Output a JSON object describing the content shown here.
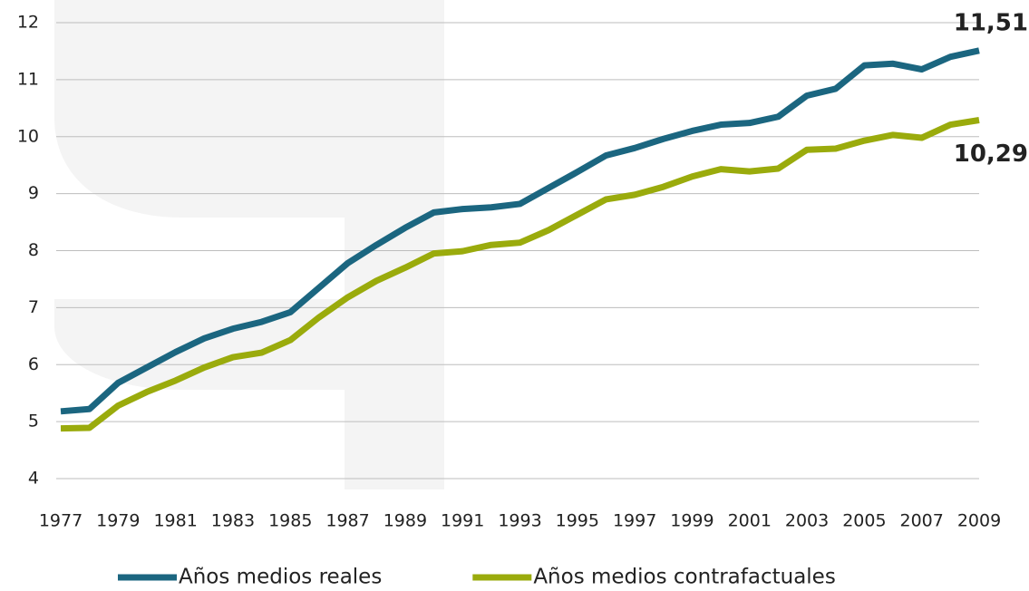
{
  "chart_data": {
    "type": "line",
    "x": [
      1977,
      1978,
      1979,
      1980,
      1981,
      1982,
      1983,
      1984,
      1985,
      1986,
      1987,
      1988,
      1989,
      1990,
      1991,
      1992,
      1993,
      1994,
      1995,
      1996,
      1997,
      1998,
      1999,
      2000,
      2001,
      2002,
      2003,
      2004,
      2005,
      2006,
      2007,
      2008,
      2009
    ],
    "xlim": [
      1977,
      2009
    ],
    "xticks": [
      1977,
      1979,
      1981,
      1983,
      1985,
      1987,
      1989,
      1991,
      1993,
      1995,
      1997,
      1999,
      2001,
      2003,
      2005,
      2007,
      2009
    ],
    "ylim": [
      4,
      12
    ],
    "yticks": [
      4,
      5,
      6,
      7,
      8,
      9,
      10,
      11,
      12
    ],
    "grid": true,
    "legend": "bottom",
    "series": [
      {
        "name": "Años medios reales",
        "color": "#1b6680",
        "values": [
          5.18,
          5.22,
          5.68,
          5.95,
          6.22,
          6.46,
          6.63,
          6.75,
          6.92,
          7.35,
          7.78,
          8.1,
          8.4,
          8.67,
          8.73,
          8.76,
          8.82,
          9.1,
          9.38,
          9.67,
          9.8,
          9.96,
          10.1,
          10.21,
          10.24,
          10.35,
          10.72,
          10.84,
          11.25,
          11.28,
          11.18,
          11.4,
          11.51
        ],
        "value_labels": [
          null,
          null,
          null,
          null,
          null,
          null,
          null,
          null,
          null,
          null,
          null,
          null,
          null,
          null,
          null,
          null,
          null,
          null,
          null,
          null,
          null,
          null,
          null,
          null,
          null,
          null,
          null,
          null,
          null,
          null,
          null,
          null,
          "11,51"
        ]
      },
      {
        "name": "Años medios contrafactuales",
        "color": "#9aab0c",
        "values": [
          4.88,
          4.89,
          5.28,
          5.52,
          5.72,
          5.95,
          6.13,
          6.21,
          6.43,
          6.83,
          7.18,
          7.47,
          7.7,
          7.95,
          7.99,
          8.1,
          8.14,
          8.36,
          8.63,
          8.9,
          8.98,
          9.12,
          9.3,
          9.43,
          9.39,
          9.44,
          9.77,
          9.79,
          9.93,
          10.03,
          9.98,
          10.21,
          10.29
        ],
        "value_labels": [
          null,
          null,
          null,
          null,
          null,
          null,
          null,
          null,
          null,
          null,
          null,
          null,
          null,
          null,
          null,
          null,
          null,
          null,
          null,
          null,
          null,
          null,
          null,
          null,
          null,
          null,
          null,
          null,
          null,
          null,
          null,
          null,
          "10,29"
        ]
      }
    ]
  }
}
